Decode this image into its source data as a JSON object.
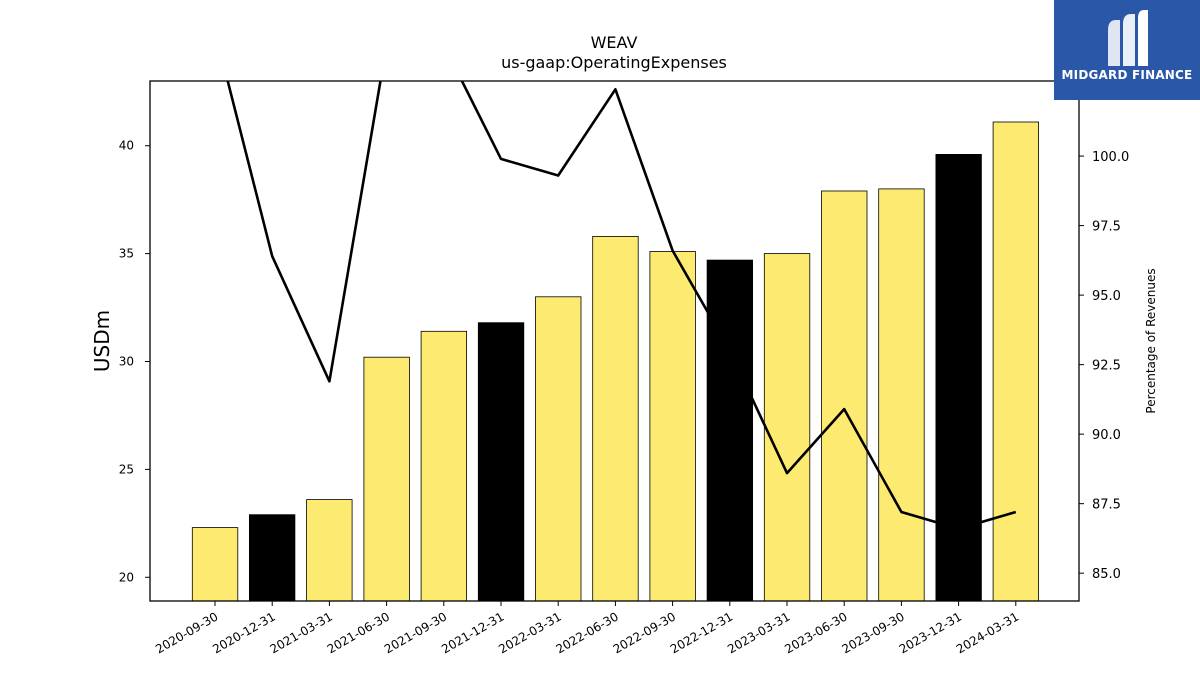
{
  "chart_data": {
    "type": "bar",
    "title": "WEAV",
    "subtitle": "us-gaap:OperatingExpenses",
    "ylabel": "USDm",
    "y2label": "Percentage of Revenues",
    "categories": [
      "2020-09-30",
      "2020-12-31",
      "2021-03-31",
      "2021-06-30",
      "2021-09-30",
      "2021-12-31",
      "2022-03-31",
      "2022-06-30",
      "2022-09-30",
      "2022-12-31",
      "2023-03-31",
      "2023-06-30",
      "2023-09-30",
      "2023-12-31",
      "2024-03-31"
    ],
    "values": [
      22.3,
      22.9,
      23.6,
      30.2,
      31.4,
      31.8,
      33.0,
      35.8,
      35.1,
      34.7,
      35.0,
      37.9,
      38.0,
      39.6,
      41.1
    ],
    "bar_colors": [
      "#fdeb71",
      "#000000",
      "#fdeb71",
      "#fdeb71",
      "#fdeb71",
      "#000000",
      "#fdeb71",
      "#fdeb71",
      "#fdeb71",
      "#000000",
      "#fdeb71",
      "#fdeb71",
      "#fdeb71",
      "#000000",
      "#fdeb71"
    ],
    "line_values": [
      104.5,
      96.4,
      91.9,
      104.0,
      104.0,
      99.9,
      99.3,
      102.4,
      96.6,
      93.0,
      88.6,
      90.9,
      87.2,
      86.6,
      87.2
    ],
    "ylim": [
      18.9,
      43.0
    ],
    "y2lim": [
      84.0,
      102.7
    ],
    "yticks": [
      20,
      25,
      30,
      35,
      40
    ],
    "y2ticks": [
      "85.0",
      "87.5",
      "90.0",
      "92.5",
      "95.0",
      "97.5",
      "100.0"
    ],
    "grid": false
  },
  "logo": {
    "text": "MIDGARD FINANCE"
  }
}
